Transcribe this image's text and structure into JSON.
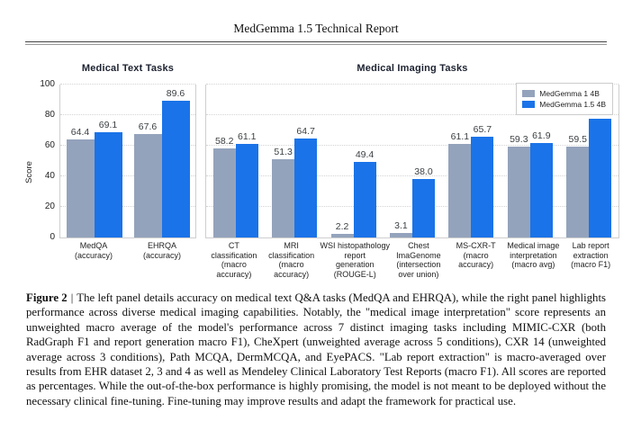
{
  "page": {
    "header_title": "MedGemma 1.5 Technical Report"
  },
  "chart": {
    "ylabel": "Score",
    "yticks": [
      0,
      20,
      40,
      60,
      80,
      100
    ],
    "colors": {
      "series1": "#94a3bc",
      "series2": "#1a73e8"
    },
    "legend": [
      {
        "label": "MedGemma 1 4B",
        "color": "#94a3bc"
      },
      {
        "label": "MedGemma 1.5 4B",
        "color": "#1a73e8"
      }
    ]
  },
  "chart_data": [
    {
      "type": "bar",
      "title": "Medical Text Tasks",
      "categories": [
        "MedQA\n(accuracy)",
        "EHRQA\n(accuracy)"
      ],
      "series": [
        {
          "name": "MedGemma 1 4B",
          "values": [
            64.4,
            67.6
          ]
        },
        {
          "name": "MedGemma 1.5 4B",
          "values": [
            69.1,
            89.6
          ]
        }
      ],
      "ylabel": "Score",
      "ylim": [
        0,
        100
      ],
      "grid": true
    },
    {
      "type": "bar",
      "title": "Medical Imaging Tasks",
      "categories": [
        "CT\nclassification\n(macro\naccuracy)",
        "MRI\nclassification\n(macro\naccuracy)",
        "WSI histopathology\nreport\ngeneration\n(ROUGE-L)",
        "Chest\nImaGenome\n(intersection\nover union)",
        "MS-CXR-T\n(macro\naccuracy)",
        "Medical image\ninterpretation\n(macro avg)",
        "Lab report\nextraction\n(macro F1)"
      ],
      "series": [
        {
          "name": "MedGemma 1 4B",
          "values": [
            58.2,
            51.3,
            2.2,
            3.1,
            61.1,
            59.3,
            59.5
          ]
        },
        {
          "name": "MedGemma 1.5 4B",
          "values": [
            61.1,
            64.7,
            49.4,
            38.0,
            65.7,
            61.9,
            77.8
          ]
        }
      ],
      "ylim": [
        0,
        100
      ],
      "grid": true,
      "legend_position": "top-right"
    }
  ],
  "caption": {
    "label": "Figure 2",
    "separator": "|",
    "text": "The left panel details accuracy on medical text Q&A tasks (MedQA and EHRQA), while the right panel highlights performance across diverse medical imaging capabilities. Notably, the \"medical image interpretation\" score represents an unweighted macro average of the model's performance across 7 distinct imaging tasks including MIMIC-CXR (both RadGraph F1 and report generation macro F1), CheXpert (unweighted average across 5 conditions), CXR 14 (unweighted average across 3 conditions), Path MCQA, DermMCQA, and EyePACS. \"Lab report extraction\" is macro-averaged over results from EHR dataset 2, 3 and 4 as well as Mendeley Clinical Laboratory Test Reports (macro F1). All scores are reported as percentages. While the out-of-the-box performance is highly promising, the model is not meant to be deployed without the necessary clinical fine-tuning. Fine-tuning may improve results and adapt the framework for practical use."
  }
}
